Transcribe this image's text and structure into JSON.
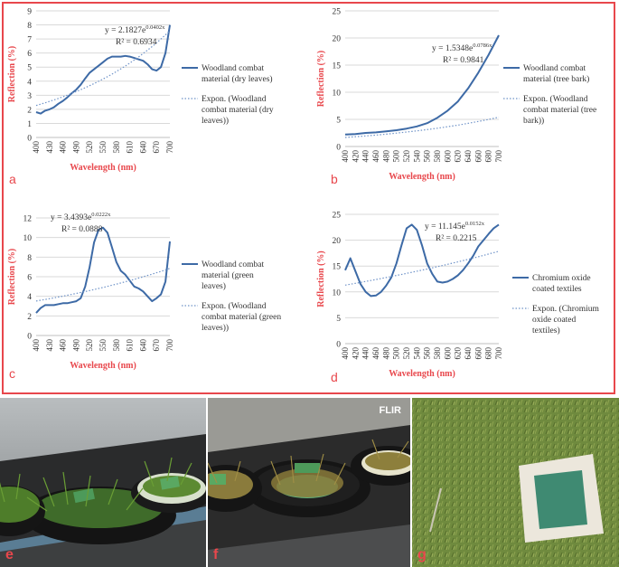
{
  "chart_data": [
    {
      "panel": "a",
      "type": "line",
      "ylabel": "Reflection (%)",
      "xlabel": "Wavelength (nm)",
      "x_ticks": [
        400,
        430,
        460,
        490,
        520,
        550,
        580,
        610,
        640,
        670,
        700
      ],
      "y_ticks": [
        0,
        1,
        2,
        3,
        4,
        5,
        6,
        7,
        8,
        9
      ],
      "xlim": [
        400,
        700
      ],
      "ylim": [
        0,
        9
      ],
      "equation": "y = 2.1827e",
      "equation_exp": "0.0402x",
      "r2": "R² = 0.6934",
      "trend": {
        "a": 2.1827,
        "b": 0.0402
      },
      "series": [
        {
          "name": "Woodland combat material (dry leaves)",
          "x": [
            400,
            410,
            420,
            430,
            440,
            450,
            460,
            470,
            480,
            490,
            500,
            510,
            520,
            530,
            540,
            550,
            560,
            570,
            580,
            590,
            600,
            610,
            620,
            630,
            640,
            650,
            660,
            670,
            680,
            690,
            700
          ],
          "y": [
            1.8,
            1.7,
            1.9,
            2.0,
            2.15,
            2.4,
            2.6,
            2.85,
            3.15,
            3.4,
            3.75,
            4.2,
            4.6,
            4.85,
            5.1,
            5.35,
            5.6,
            5.75,
            5.75,
            5.75,
            5.8,
            5.75,
            5.65,
            5.55,
            5.45,
            5.2,
            4.85,
            4.75,
            5.0,
            6.0,
            8.0
          ]
        }
      ],
      "trend_label": "Expon. (Woodland combat material (dry leaves))"
    },
    {
      "panel": "b",
      "type": "line",
      "ylabel": "Reflection (%)",
      "xlabel": "Wavelength (nm)",
      "x_ticks": [
        400,
        420,
        440,
        460,
        480,
        500,
        520,
        540,
        560,
        580,
        600,
        620,
        640,
        660,
        680,
        700
      ],
      "y_ticks": [
        0,
        5,
        10,
        15,
        20,
        25
      ],
      "xlim": [
        400,
        700
      ],
      "ylim": [
        0,
        25
      ],
      "equation": "y = 1.5348e",
      "equation_exp": "0.0786x",
      "r2": "R² = 0.9841",
      "trend": {
        "a": 1.5348,
        "b": 0.0786
      },
      "series": [
        {
          "name": "Woodland combat material (tree bark)",
          "x": [
            400,
            420,
            440,
            460,
            480,
            500,
            520,
            540,
            560,
            580,
            600,
            620,
            640,
            660,
            680,
            700
          ],
          "y": [
            2.2,
            2.3,
            2.5,
            2.6,
            2.8,
            3.0,
            3.3,
            3.7,
            4.3,
            5.3,
            6.6,
            8.3,
            10.7,
            13.6,
            16.9,
            20.5
          ]
        }
      ],
      "trend_label": "Expon. (Woodland combat material (tree bark))"
    },
    {
      "panel": "c",
      "type": "line",
      "ylabel": "Reflection (%)",
      "xlabel": "Wavelength (nm)",
      "x_ticks": [
        400,
        430,
        460,
        490,
        520,
        550,
        580,
        610,
        640,
        670,
        700
      ],
      "y_ticks": [
        0,
        2,
        4,
        6,
        8,
        10,
        12
      ],
      "xlim": [
        400,
        700
      ],
      "ylim": [
        0,
        12
      ],
      "equation": "y = 3.4393e",
      "equation_exp": "0.0222x",
      "r2": "R² = 0.0888",
      "trend": {
        "a": 3.4393,
        "b": 0.0222
      },
      "series": [
        {
          "name": "Woodland combat material (green leaves)",
          "x": [
            400,
            410,
            420,
            430,
            440,
            450,
            460,
            470,
            480,
            490,
            500,
            510,
            520,
            530,
            540,
            550,
            560,
            570,
            580,
            590,
            600,
            610,
            620,
            630,
            640,
            650,
            660,
            670,
            680,
            690,
            700
          ],
          "y": [
            2.3,
            2.8,
            3.1,
            3.1,
            3.1,
            3.2,
            3.3,
            3.3,
            3.4,
            3.5,
            3.8,
            5.0,
            7.0,
            9.5,
            10.8,
            11.0,
            10.5,
            9.0,
            7.5,
            6.6,
            6.2,
            5.6,
            5.0,
            4.8,
            4.5,
            4.0,
            3.5,
            3.8,
            4.2,
            5.5,
            9.6
          ]
        }
      ],
      "trend_label": "Expon. (Woodland combat material (green leaves))"
    },
    {
      "panel": "d",
      "type": "line",
      "ylabel": "Reflection (%)",
      "xlabel": "Wavelength (nm)",
      "x_ticks": [
        400,
        420,
        440,
        460,
        480,
        500,
        520,
        540,
        560,
        580,
        600,
        620,
        640,
        660,
        680,
        700
      ],
      "y_ticks": [
        0,
        5,
        10,
        15,
        20,
        25
      ],
      "xlim": [
        400,
        700
      ],
      "ylim": [
        0,
        25
      ],
      "equation": "y = 11.145e",
      "equation_exp": "0.0152x",
      "r2": "R² = 0.2215",
      "trend": {
        "a": 11.145,
        "b": 0.0152
      },
      "series": [
        {
          "name": "Chromium oxide coated textiles",
          "x": [
            400,
            410,
            420,
            430,
            440,
            450,
            460,
            470,
            480,
            490,
            500,
            510,
            520,
            530,
            540,
            550,
            560,
            570,
            580,
            590,
            600,
            610,
            620,
            630,
            640,
            650,
            660,
            670,
            680,
            690,
            700
          ],
          "y": [
            14.2,
            16.5,
            14.0,
            11.5,
            10.0,
            9.2,
            9.3,
            10.0,
            11.2,
            12.8,
            15.5,
            19.0,
            22.3,
            23.0,
            22.0,
            19.0,
            15.5,
            13.5,
            12.0,
            11.8,
            12.0,
            12.5,
            13.2,
            14.2,
            15.5,
            17.0,
            18.8,
            20.0,
            21.2,
            22.3,
            23.0
          ]
        }
      ],
      "trend_label": "Expon. (Chromium oxide coated textiles)"
    }
  ],
  "photos": [
    {
      "letter": "e"
    },
    {
      "letter": "f",
      "brand": "FLIR"
    },
    {
      "letter": "g"
    }
  ],
  "colors": {
    "series": "#3d6aa6",
    "trend": "#6f93c8",
    "axis_text": "#e8474c",
    "tick_text": "#333333",
    "grid": "#d9d9d9",
    "frame": "#e8474c"
  }
}
